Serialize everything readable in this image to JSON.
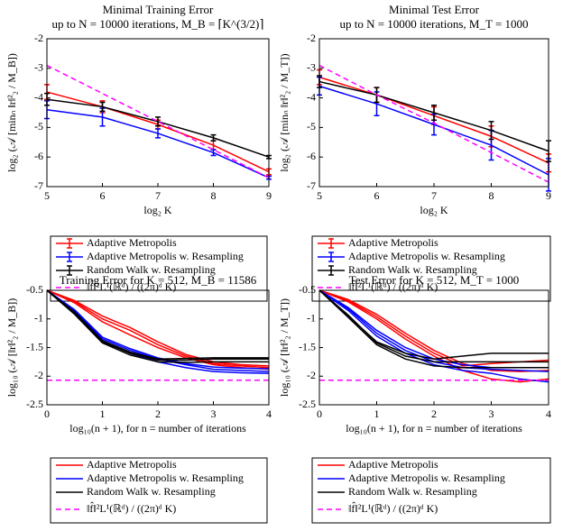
{
  "chart_data": [
    {
      "type": "errorbar",
      "title": "Minimal Training Error",
      "subtitle": "up to N = 10000 iterations, M_B = ⌈K^(3/2)⌉",
      "xlabel": "log₂ K",
      "ylabel": "log₂ (𝒜 [minₙ ‖r‖²₂ / M_B])",
      "x": [
        5,
        6,
        7,
        8,
        9
      ],
      "xlim": [
        5,
        9
      ],
      "xticks": [
        5,
        6,
        7,
        8,
        9
      ],
      "ylim": [
        -7,
        -2
      ],
      "yticks": [
        -7,
        -6,
        -5,
        -4,
        -3,
        -2
      ],
      "series": [
        {
          "name": "Adaptive Metropolis",
          "color": "#ff0000",
          "values": [
            -3.8,
            -4.3,
            -4.9,
            -5.6,
            -6.5
          ],
          "errors": [
            0.25,
            0.2,
            0.15,
            0.15,
            0.1
          ]
        },
        {
          "name": "Adaptive Metropolis w. Resampling",
          "color": "#0000ff",
          "values": [
            -4.4,
            -4.65,
            -5.2,
            -5.85,
            -6.7
          ],
          "errors": [
            0.3,
            0.3,
            0.15,
            0.1,
            0.05
          ]
        },
        {
          "name": "Random Walk w. Resampling",
          "color": "#000000",
          "values": [
            -4.05,
            -4.3,
            -4.8,
            -5.35,
            -6.0
          ],
          "errors": [
            0.2,
            0.15,
            0.15,
            0.1,
            0.05
          ]
        },
        {
          "name": "‖f̂‖²L¹(ℝᵈ) / ((2π)ᵈ K)",
          "color": "#ff00ff",
          "style": "dashed",
          "values": [
            -2.9,
            -3.85,
            -4.8,
            -5.75,
            -6.7
          ]
        }
      ]
    },
    {
      "type": "errorbar",
      "title": "Minimal Test Error",
      "subtitle": "up to N = 10000 iterations, M_T = 1000",
      "xlabel": "log₂ K",
      "ylabel": "log₂ (𝒜 [minₙ ‖r‖²₂ / M_T])",
      "x": [
        5,
        6,
        7,
        8,
        9
      ],
      "xlim": [
        5,
        9
      ],
      "xticks": [
        5,
        6,
        7,
        8,
        9
      ],
      "ylim": [
        -7,
        -2
      ],
      "yticks": [
        -7,
        -6,
        -5,
        -4,
        -3,
        -2
      ],
      "series": [
        {
          "name": "Adaptive Metropolis",
          "color": "#ff0000",
          "values": [
            -3.3,
            -3.9,
            -4.6,
            -5.3,
            -6.2
          ],
          "errors": [
            0.25,
            0.25,
            0.3,
            0.35,
            0.3
          ]
        },
        {
          "name": "Adaptive Metropolis w. Resampling",
          "color": "#0000ff",
          "values": [
            -3.6,
            -4.2,
            -4.9,
            -5.6,
            -6.6
          ],
          "errors": [
            0.3,
            0.4,
            0.35,
            0.5,
            0.55
          ]
        },
        {
          "name": "Random Walk w. Resampling",
          "color": "#000000",
          "values": [
            -3.45,
            -3.9,
            -4.5,
            -5.1,
            -5.8
          ],
          "errors": [
            0.2,
            0.25,
            0.25,
            0.3,
            0.35
          ]
        },
        {
          "name": "‖f̂‖²L¹(ℝᵈ) / ((2π)ᵈ K)",
          "color": "#ff00ff",
          "style": "dashed",
          "values": [
            -2.9,
            -3.9,
            -4.85,
            -5.85,
            -6.85
          ]
        }
      ]
    },
    {
      "type": "runs",
      "title": "Training Error for K = 512, M_B = 11586",
      "xlabel": "log₁₀(n + 1), for n = number of iterations",
      "ylabel": "log₁₀ (𝒜 [‖r‖²₂ / M_B])",
      "x": [
        0,
        0.5,
        1,
        1.5,
        2,
        2.5,
        3,
        3.5,
        4
      ],
      "xlim": [
        0,
        4
      ],
      "xticks": [
        0,
        1,
        2,
        3,
        4
      ],
      "ylim": [
        -2.5,
        -0.5
      ],
      "yticks": [
        -2.5,
        -2,
        -1.5,
        -1,
        -0.5
      ],
      "series": [
        {
          "name": "Adaptive Metropolis",
          "color": "#ff0000",
          "runs": [
            [
              -0.5,
              -0.7,
              -1.0,
              -1.2,
              -1.45,
              -1.65,
              -1.78,
              -1.82,
              -1.85
            ],
            [
              -0.5,
              -0.72,
              -1.05,
              -1.28,
              -1.5,
              -1.68,
              -1.8,
              -1.85,
              -1.88
            ],
            [
              -0.5,
              -0.68,
              -0.95,
              -1.15,
              -1.4,
              -1.62,
              -1.75,
              -1.8,
              -1.82
            ]
          ]
        },
        {
          "name": "Adaptive Metropolis w. Resampling",
          "color": "#0000ff",
          "runs": [
            [
              -0.5,
              -0.85,
              -1.35,
              -1.55,
              -1.7,
              -1.8,
              -1.88,
              -1.9,
              -1.92
            ],
            [
              -0.5,
              -0.86,
              -1.38,
              -1.6,
              -1.75,
              -1.85,
              -1.92,
              -1.94,
              -1.95
            ],
            [
              -0.5,
              -0.84,
              -1.32,
              -1.52,
              -1.68,
              -1.78,
              -1.84,
              -1.86,
              -1.87
            ]
          ]
        },
        {
          "name": "Random Walk w. Resampling",
          "color": "#000000",
          "runs": [
            [
              -0.5,
              -0.9,
              -1.4,
              -1.6,
              -1.72,
              -1.72,
              -1.7,
              -1.7,
              -1.7
            ],
            [
              -0.5,
              -0.92,
              -1.42,
              -1.63,
              -1.75,
              -1.76,
              -1.75,
              -1.75,
              -1.75
            ],
            [
              -0.5,
              -0.88,
              -1.38,
              -1.58,
              -1.7,
              -1.69,
              -1.68,
              -1.68,
              -1.68
            ]
          ]
        },
        {
          "name": "‖f̂‖²L¹(ℝᵈ) / ((2π)ᵈ K)",
          "color": "#ff00ff",
          "style": "dashed",
          "value": -2.07
        }
      ]
    },
    {
      "type": "runs",
      "title": "Test Error for K = 512, M_T = 1000",
      "xlabel": "log₁₀(n + 1), for n = number of iterations",
      "ylabel": "log₁₀ (𝒜 [‖r‖²₂ / M_T])",
      "x": [
        0,
        0.5,
        1,
        1.5,
        2,
        2.5,
        3,
        3.5,
        4
      ],
      "xlim": [
        0,
        4
      ],
      "xticks": [
        0,
        1,
        2,
        3,
        4
      ],
      "ylim": [
        -2.5,
        -0.5
      ],
      "yticks": [
        -2.5,
        -2,
        -1.5,
        -1,
        -0.5
      ],
      "series": [
        {
          "name": "Adaptive Metropolis",
          "color": "#ff0000",
          "runs": [
            [
              -0.5,
              -0.7,
              -1.0,
              -1.35,
              -1.65,
              -1.9,
              -2.05,
              -2.1,
              -2.05
            ],
            [
              -0.5,
              -0.66,
              -0.92,
              -1.25,
              -1.55,
              -1.78,
              -1.9,
              -1.92,
              -1.9
            ],
            [
              -0.5,
              -0.68,
              -0.96,
              -1.3,
              -1.6,
              -1.82,
              -1.78,
              -1.75,
              -1.72
            ]
          ]
        },
        {
          "name": "Adaptive Metropolis w. Resampling",
          "color": "#0000ff",
          "runs": [
            [
              -0.5,
              -0.85,
              -1.3,
              -1.6,
              -1.8,
              -1.9,
              -1.95,
              -2.05,
              -2.1
            ],
            [
              -0.5,
              -0.82,
              -1.25,
              -1.55,
              -1.75,
              -1.85,
              -1.88,
              -1.9,
              -1.92
            ],
            [
              -0.5,
              -0.8,
              -1.2,
              -1.5,
              -1.7,
              -1.8,
              -1.85,
              -1.85,
              -1.85
            ]
          ]
        },
        {
          "name": "Random Walk w. Resampling",
          "color": "#000000",
          "runs": [
            [
              -0.5,
              -0.95,
              -1.4,
              -1.6,
              -1.7,
              -1.65,
              -1.6,
              -1.6,
              -1.6
            ],
            [
              -0.5,
              -0.93,
              -1.42,
              -1.65,
              -1.75,
              -1.75,
              -1.75,
              -1.75,
              -1.75
            ],
            [
              -0.5,
              -0.97,
              -1.45,
              -1.7,
              -1.82,
              -1.85,
              -1.85,
              -1.85,
              -1.85
            ]
          ]
        },
        {
          "name": "‖f̂‖²L¹(ℝᵈ) / ((2π)ᵈ K)",
          "color": "#ff00ff",
          "style": "dashed",
          "value": -2.07
        }
      ]
    }
  ]
}
